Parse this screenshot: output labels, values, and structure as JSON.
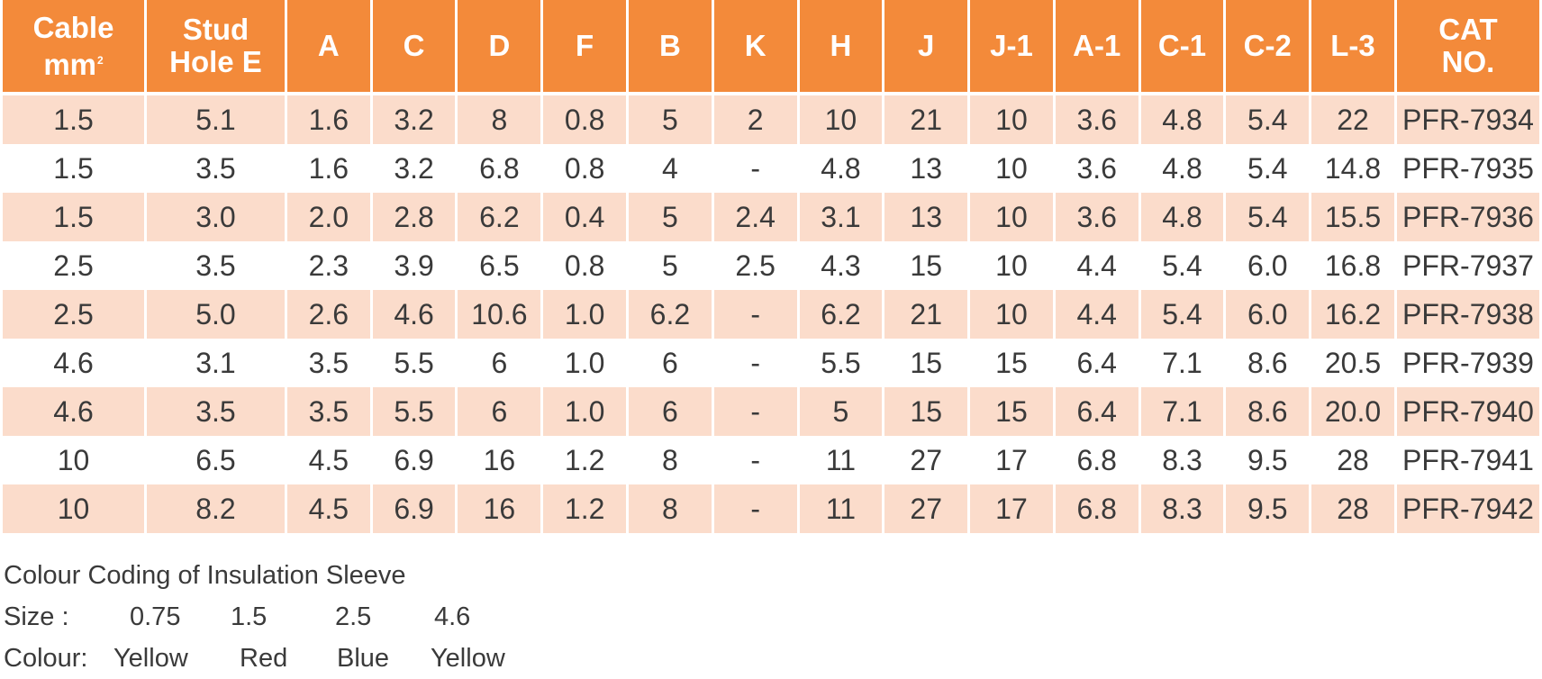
{
  "table": {
    "header": {
      "cable": [
        "Cable",
        "mm"
      ],
      "cable_sup": "2",
      "stud": [
        "Stud",
        "Hole E"
      ],
      "a": "A",
      "c": "C",
      "d": "D",
      "f": "F",
      "b": "B",
      "k": "K",
      "h": "H",
      "j": "J",
      "j1": "J-1",
      "a1": "A-1",
      "c1": "C-1",
      "c2": "C-2",
      "l3": "L-3",
      "cat": [
        "CAT",
        "NO."
      ]
    },
    "header_color": "#f38a3a",
    "stripe_color": "#fbdccb",
    "rows": [
      [
        "1.5",
        "5.1",
        "1.6",
        "3.2",
        "8",
        "0.8",
        "5",
        "2",
        "10",
        "21",
        "10",
        "3.6",
        "4.8",
        "5.4",
        "22",
        "PFR-7934"
      ],
      [
        "1.5",
        "3.5",
        "1.6",
        "3.2",
        "6.8",
        "0.8",
        "4",
        "-",
        "4.8",
        "13",
        "10",
        "3.6",
        "4.8",
        "5.4",
        "14.8",
        "PFR-7935"
      ],
      [
        "1.5",
        "3.0",
        "2.0",
        "2.8",
        "6.2",
        "0.4",
        "5",
        "2.4",
        "3.1",
        "13",
        "10",
        "3.6",
        "4.8",
        "5.4",
        "15.5",
        "PFR-7936"
      ],
      [
        "2.5",
        "3.5",
        "2.3",
        "3.9",
        "6.5",
        "0.8",
        "5",
        "2.5",
        "4.3",
        "15",
        "10",
        "4.4",
        "5.4",
        "6.0",
        "16.8",
        "PFR-7937"
      ],
      [
        "2.5",
        "5.0",
        "2.6",
        "4.6",
        "10.6",
        "1.0",
        "6.2",
        "-",
        "6.2",
        "21",
        "10",
        "4.4",
        "5.4",
        "6.0",
        "16.2",
        "PFR-7938"
      ],
      [
        "4.6",
        "3.1",
        "3.5",
        "5.5",
        "6",
        "1.0",
        "6",
        "-",
        "5.5",
        "15",
        "15",
        "6.4",
        "7.1",
        "8.6",
        "20.5",
        "PFR-7939"
      ],
      [
        "4.6",
        "3.5",
        "3.5",
        "5.5",
        "6",
        "1.0",
        "6",
        "-",
        "5",
        "15",
        "15",
        "6.4",
        "7.1",
        "8.6",
        "20.0",
        "PFR-7940"
      ],
      [
        "10",
        "6.5",
        "4.5",
        "6.9",
        "16",
        "1.2",
        "8",
        "-",
        "11",
        "27",
        "17",
        "6.8",
        "8.3",
        "9.5",
        "28",
        "PFR-7941"
      ],
      [
        "10",
        "8.2",
        "4.5",
        "6.9",
        "16",
        "1.2",
        "8",
        "-",
        "11",
        "27",
        "17",
        "6.8",
        "8.3",
        "9.5",
        "28",
        "PFR-7942"
      ]
    ]
  },
  "legend": {
    "title": "Colour Coding of Insulation Sleeve",
    "size_label": "Size :",
    "sizes": [
      "0.75",
      "1.5",
      "2.5",
      "4.6"
    ],
    "colour_label": "Colour:",
    "colours": [
      "Yellow",
      "Red",
      "Blue",
      "Yellow"
    ]
  }
}
